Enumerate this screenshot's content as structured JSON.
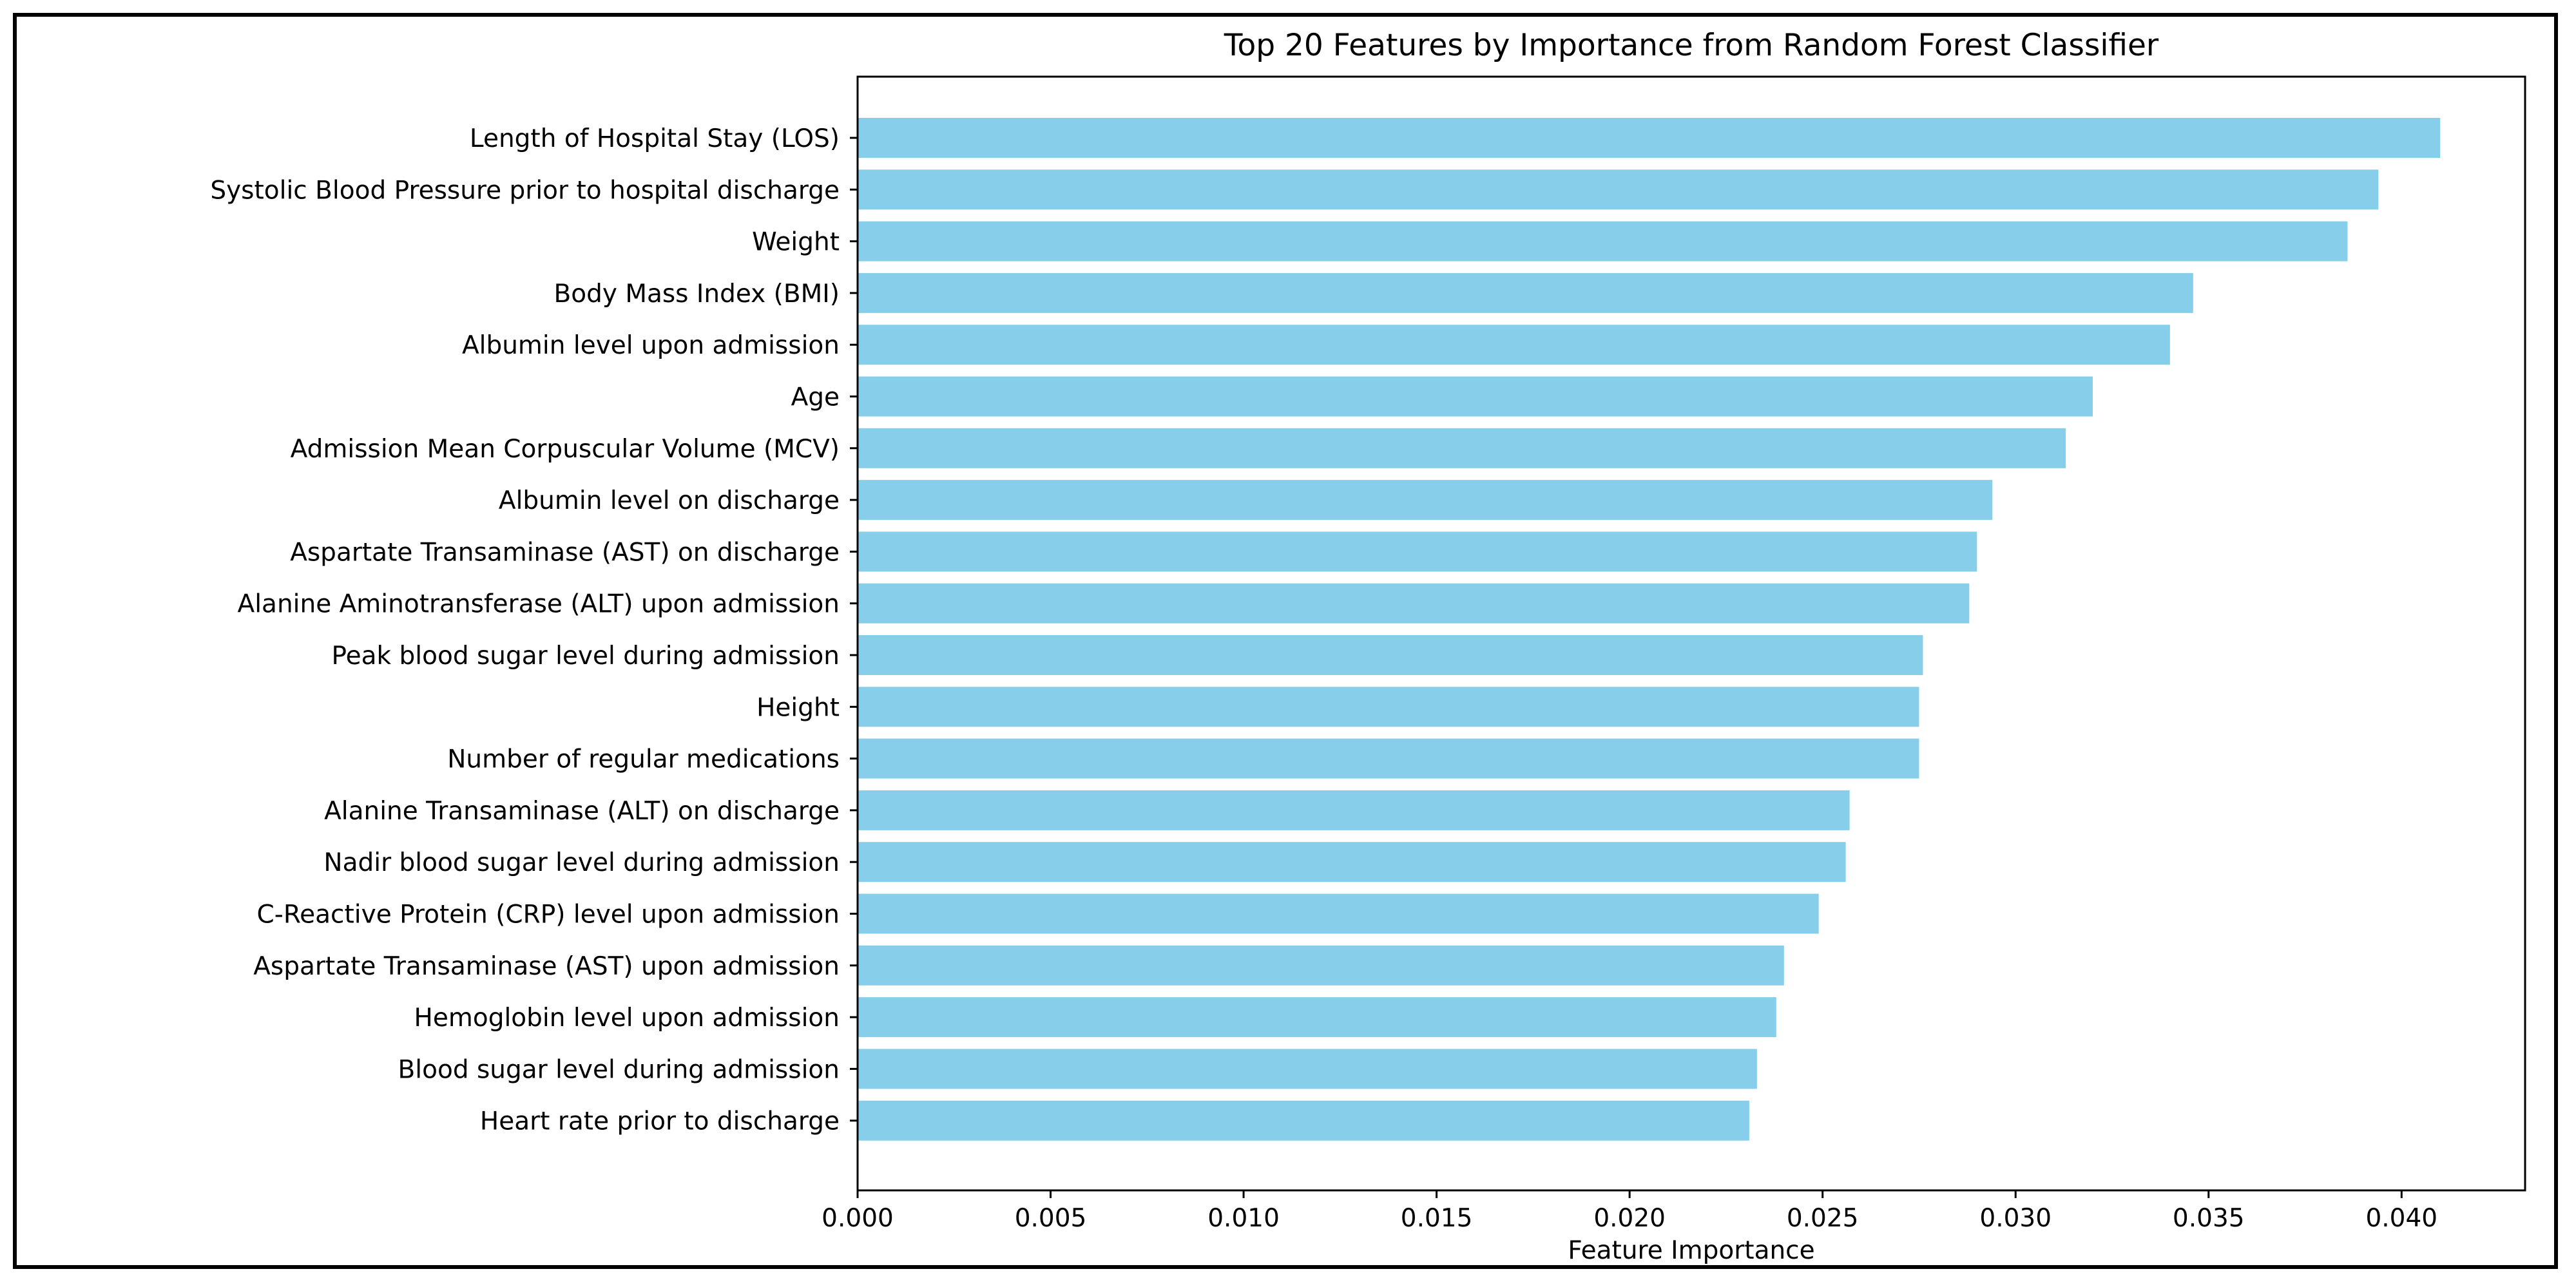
{
  "chart_data": {
    "type": "bar",
    "orientation": "horizontal",
    "title": "Top 20 Features by Importance from Random Forest Classifier",
    "xlabel": "Feature Importance",
    "ylabel": "",
    "xlim": [
      0,
      0.0432
    ],
    "xticks": [
      0.0,
      0.005,
      0.01,
      0.015,
      0.02,
      0.025,
      0.03,
      0.035,
      0.04
    ],
    "xtick_labels": [
      "0.000",
      "0.005",
      "0.010",
      "0.015",
      "0.020",
      "0.025",
      "0.030",
      "0.035",
      "0.040"
    ],
    "bar_color": "#87CEEB",
    "grid": false,
    "categories": [
      "Length of Hospital Stay (LOS)",
      "Systolic Blood Pressure prior to hospital discharge",
      "Weight",
      "Body Mass Index (BMI)",
      "Albumin level upon admission",
      "Age",
      "Admission Mean Corpuscular Volume (MCV)",
      "Albumin level on discharge",
      "Aspartate Transaminase (AST) on discharge",
      "Alanine Aminotransferase (ALT) upon admission",
      "Peak blood sugar level during admission",
      "Height",
      "Number of regular medications",
      "Alanine Transaminase (ALT) on discharge",
      "Nadir blood sugar level during admission",
      "C-Reactive Protein (CRP) level upon admission",
      "Aspartate Transaminase (AST) upon admission",
      "Hemoglobin level upon admission",
      "Blood sugar level during admission",
      "Heart rate prior to discharge"
    ],
    "values": [
      0.041,
      0.0394,
      0.0386,
      0.0346,
      0.034,
      0.032,
      0.0313,
      0.0294,
      0.029,
      0.0288,
      0.0276,
      0.0275,
      0.0275,
      0.0257,
      0.0256,
      0.0249,
      0.024,
      0.0238,
      0.0233,
      0.0231
    ]
  }
}
